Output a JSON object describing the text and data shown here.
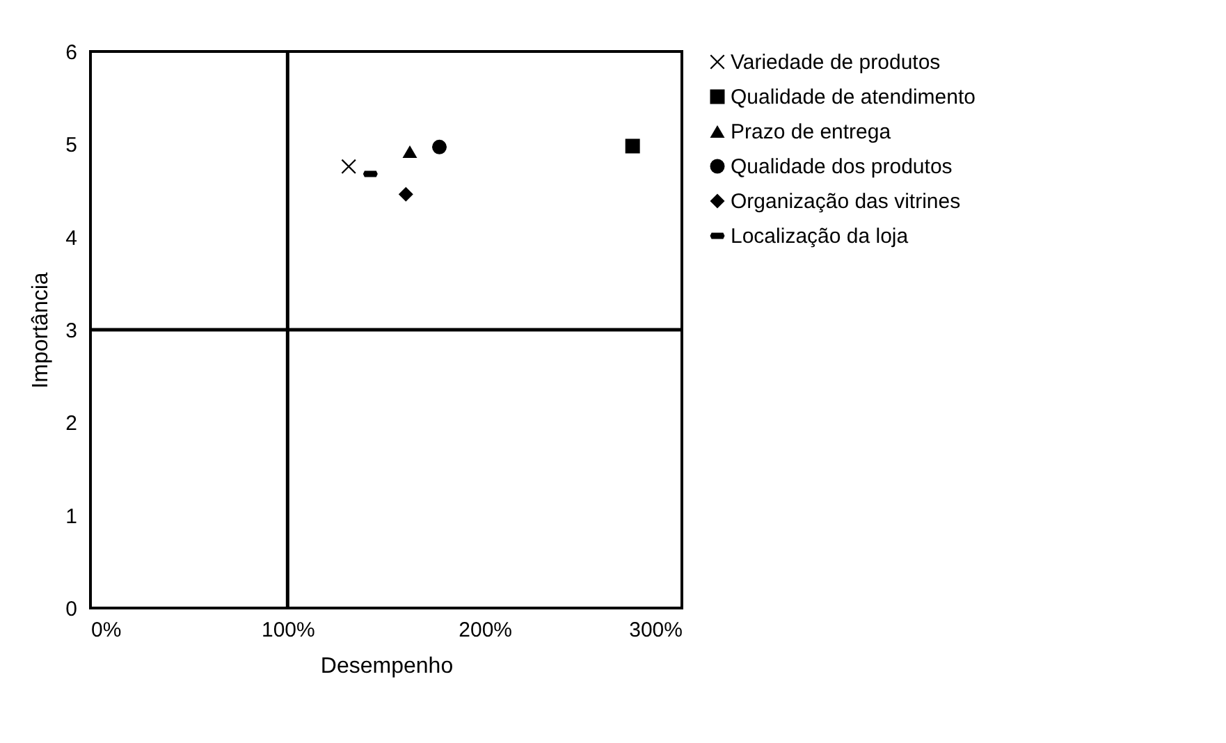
{
  "chart_data": {
    "type": "scatter",
    "xlabel": "Desempenho",
    "ylabel": "Importância",
    "xlim": [
      0,
      300
    ],
    "xticks": [
      {
        "value": 0,
        "label": "0%"
      },
      {
        "value": 100,
        "label": "100%"
      },
      {
        "value": 200,
        "label": "200%"
      },
      {
        "value": 300,
        "label": "300%"
      }
    ],
    "ylim": [
      0,
      6
    ],
    "yticks": [
      0,
      1,
      2,
      3,
      4,
      5,
      6
    ],
    "grid": false,
    "legend": "right",
    "series": [
      {
        "name": "Variedade de produtos",
        "color": "#000000",
        "marker": "cross",
        "x": [
          131
        ],
        "values": [
          4.76
        ]
      },
      {
        "name": "Qualidade de atendimento",
        "color": "#000000",
        "marker": "square",
        "x": [
          275
        ],
        "values": [
          4.98
        ]
      },
      {
        "name": "Prazo de entrega",
        "color": "#000000",
        "marker": "triangle",
        "x": [
          162
        ],
        "values": [
          4.92
        ]
      },
      {
        "name": "Qualidade dos produtos",
        "color": "#000000",
        "marker": "circle",
        "x": [
          177
        ],
        "values": [
          4.97
        ]
      },
      {
        "name": "Organização das vitrines",
        "color": "#000000",
        "marker": "diamond",
        "x": [
          160
        ],
        "values": [
          4.46
        ]
      },
      {
        "name": "Localização da loja",
        "color": "#000000",
        "x": [
          142
        ],
        "values": [
          4.68
        ]
      }
    ],
    "ref_lines": [
      {
        "axis": "x",
        "value": 100,
        "color": "#000000"
      },
      {
        "axis": "y",
        "value": 3,
        "color": "#000000"
      }
    ]
  }
}
